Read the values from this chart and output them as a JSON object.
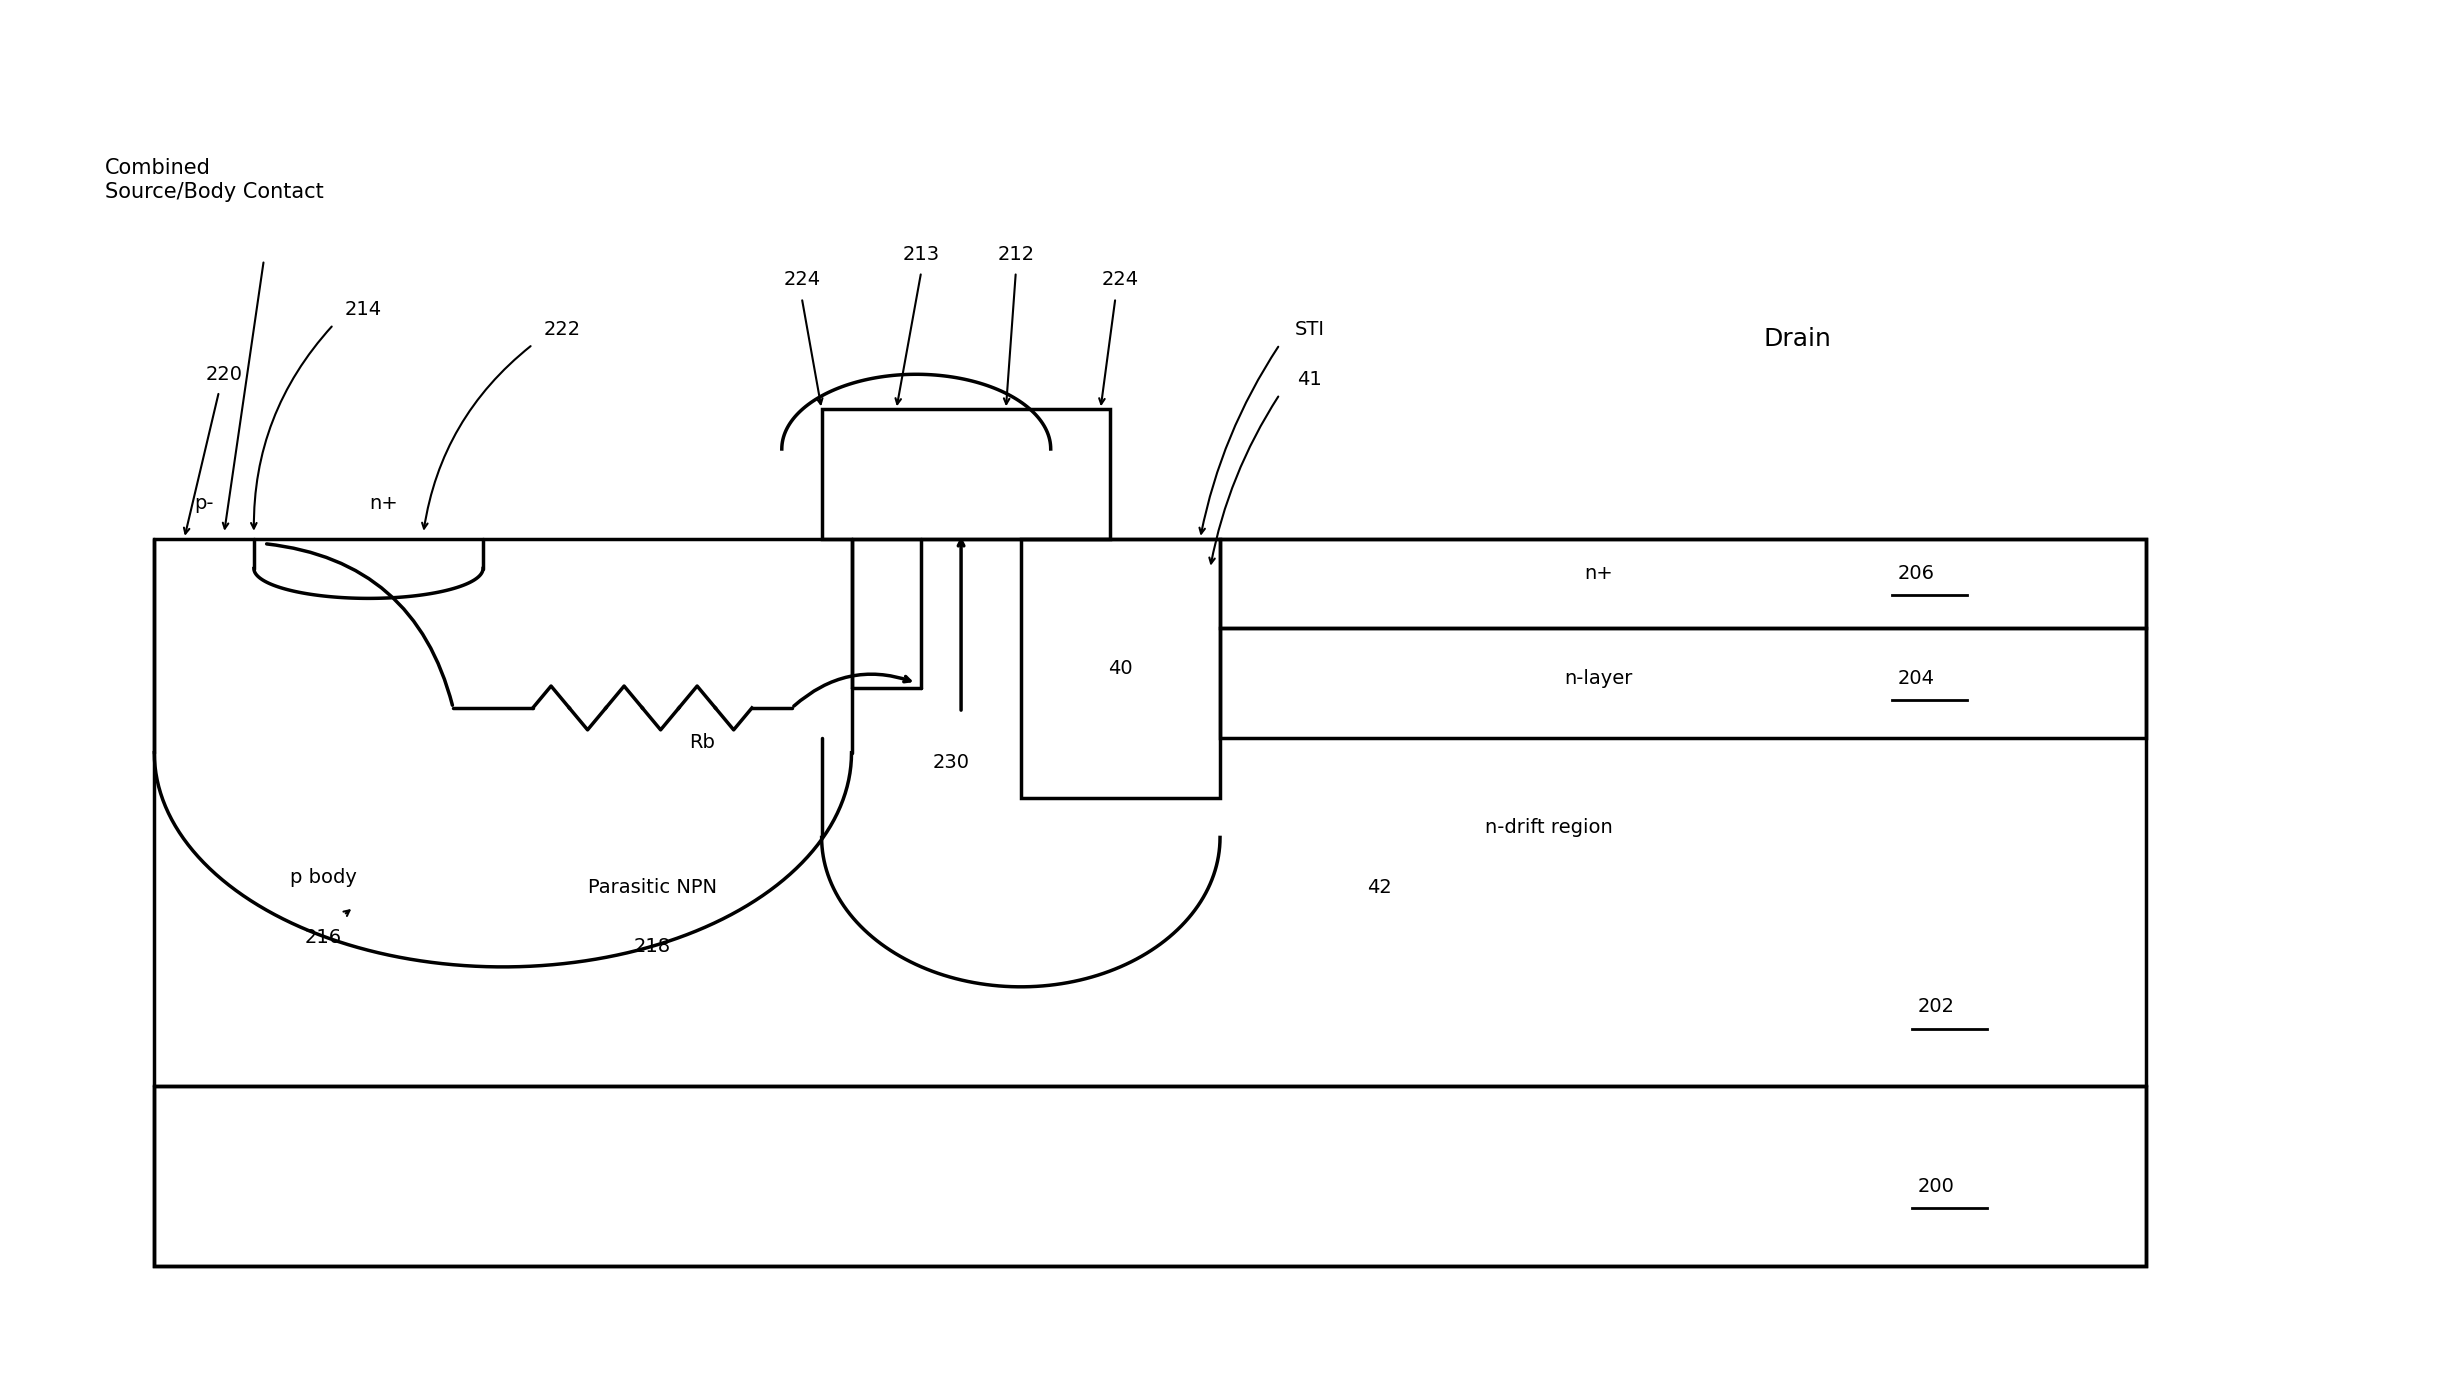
{
  "bg_color": "#ffffff",
  "line_color": "#000000",
  "fig_width": 24.56,
  "fig_height": 13.88,
  "labels": {
    "combined_source": "Combined\nSource/Body Contact",
    "num_214": "214",
    "num_220": "220",
    "num_222": "222",
    "num_224_left": "224",
    "num_213": "213",
    "num_212": "212",
    "num_224_right": "224",
    "sti_label": "STI",
    "num_41": "41",
    "drain_label": "Drain",
    "num_206": "206",
    "nt_drain": "n+",
    "num_204": "204",
    "nlayer_label": "n-layer",
    "num_40": "40",
    "p_minus": "p-",
    "nt_source": "n+",
    "rb_label": "Rb",
    "num_230": "230",
    "parasitic_npn": "Parasitic NPN",
    "num_218": "218",
    "p_body": "p body",
    "num_216": "216",
    "ndrift_region": "n-drift region",
    "num_42": "42",
    "num_202": "202",
    "num_200": "200"
  }
}
